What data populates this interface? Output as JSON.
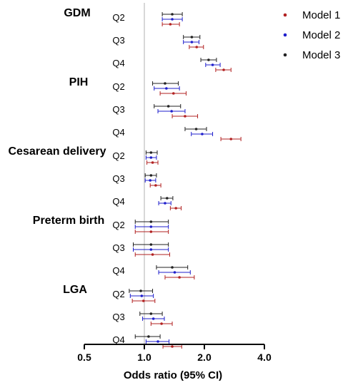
{
  "chart_data": {
    "type": "forest",
    "xlabel": "Odds ratio (95% CI)",
    "x_scale": "log",
    "xlim": [
      0.5,
      4.0
    ],
    "x_ticks": [
      "0.5",
      "1.0",
      "2.0",
      "4.0"
    ],
    "x_tick_values": [
      0.5,
      1.0,
      2.0,
      4.0
    ],
    "reference_line": 1.0,
    "legend": {
      "placement": "top-right",
      "entries": [
        {
          "name": "Model 1",
          "color": "#b22222"
        },
        {
          "name": "Model 2",
          "color": "#1f1fcc"
        },
        {
          "name": "Model 3",
          "color": "#222222"
        }
      ]
    },
    "groups": [
      {
        "outcome": "GDM",
        "rows": [
          {
            "quartile": "Q2",
            "model3": [
              1.38,
              1.23,
              1.55
            ],
            "model2": [
              1.38,
              1.23,
              1.55
            ],
            "model1": [
              1.35,
              1.23,
              1.5
            ]
          },
          {
            "quartile": "Q3",
            "model3": [
              1.73,
              1.57,
              1.9
            ],
            "model2": [
              1.73,
              1.57,
              1.88
            ],
            "model1": [
              1.83,
              1.68,
              1.98
            ]
          },
          {
            "quartile": "Q4",
            "model3": [
              2.1,
              1.92,
              2.3
            ],
            "model2": [
              2.2,
              2.03,
              2.4
            ],
            "model1": [
              2.5,
              2.28,
              2.72
            ]
          }
        ]
      },
      {
        "outcome": "PIH",
        "rows": [
          {
            "quartile": "Q2",
            "model3": [
              1.27,
              1.1,
              1.48
            ],
            "model2": [
              1.29,
              1.12,
              1.5
            ],
            "model1": [
              1.4,
              1.2,
              1.62
            ]
          },
          {
            "quartile": "Q3",
            "model3": [
              1.32,
              1.12,
              1.52
            ],
            "model2": [
              1.37,
              1.17,
              1.6
            ],
            "model1": [
              1.6,
              1.38,
              1.85
            ]
          },
          {
            "quartile": "Q4",
            "model3": [
              1.82,
              1.6,
              2.05
            ],
            "model2": [
              1.95,
              1.72,
              2.2
            ],
            "model1": [
              2.72,
              2.42,
              3.05
            ]
          }
        ]
      },
      {
        "outcome": "Cesarean delivery",
        "rows": [
          {
            "quartile": "Q2",
            "model3": [
              1.08,
              1.02,
              1.16
            ],
            "model2": [
              1.08,
              1.02,
              1.15
            ],
            "model1": [
              1.1,
              1.03,
              1.17
            ]
          },
          {
            "quartile": "Q3",
            "model3": [
              1.08,
              1.01,
              1.15
            ],
            "model2": [
              1.07,
              1.01,
              1.14
            ],
            "model1": [
              1.14,
              1.07,
              1.21
            ]
          },
          {
            "quartile": "Q4",
            "model3": [
              1.3,
              1.21,
              1.39
            ],
            "model2": [
              1.27,
              1.18,
              1.36
            ],
            "model1": [
              1.44,
              1.35,
              1.53
            ]
          }
        ]
      },
      {
        "outcome": "Preterm birth",
        "rows": [
          {
            "quartile": "Q2",
            "model3": [
              1.08,
              0.9,
              1.32
            ],
            "model2": [
              1.08,
              0.9,
              1.32
            ],
            "model1": [
              1.08,
              0.9,
              1.32
            ]
          },
          {
            "quartile": "Q3",
            "model3": [
              1.08,
              0.88,
              1.32
            ],
            "model2": [
              1.08,
              0.88,
              1.32
            ],
            "model1": [
              1.1,
              0.9,
              1.34
            ]
          },
          {
            "quartile": "Q4",
            "model3": [
              1.38,
              1.15,
              1.65
            ],
            "model2": [
              1.42,
              1.18,
              1.7
            ],
            "model1": [
              1.5,
              1.27,
              1.78
            ]
          }
        ]
      },
      {
        "outcome": "LGA",
        "rows": [
          {
            "quartile": "Q2",
            "model3": [
              0.96,
              0.84,
              1.1
            ],
            "model2": [
              0.97,
              0.85,
              1.11
            ],
            "model1": [
              0.99,
              0.87,
              1.13
            ]
          },
          {
            "quartile": "Q3",
            "model3": [
              1.08,
              0.95,
              1.23
            ],
            "model2": [
              1.11,
              0.98,
              1.26
            ],
            "model1": [
              1.22,
              1.08,
              1.38
            ]
          },
          {
            "quartile": "Q4",
            "model3": [
              1.05,
              0.9,
              1.2
            ],
            "model2": [
              1.17,
              1.02,
              1.33
            ],
            "model1": [
              1.38,
              1.24,
              1.54
            ]
          }
        ]
      }
    ]
  }
}
